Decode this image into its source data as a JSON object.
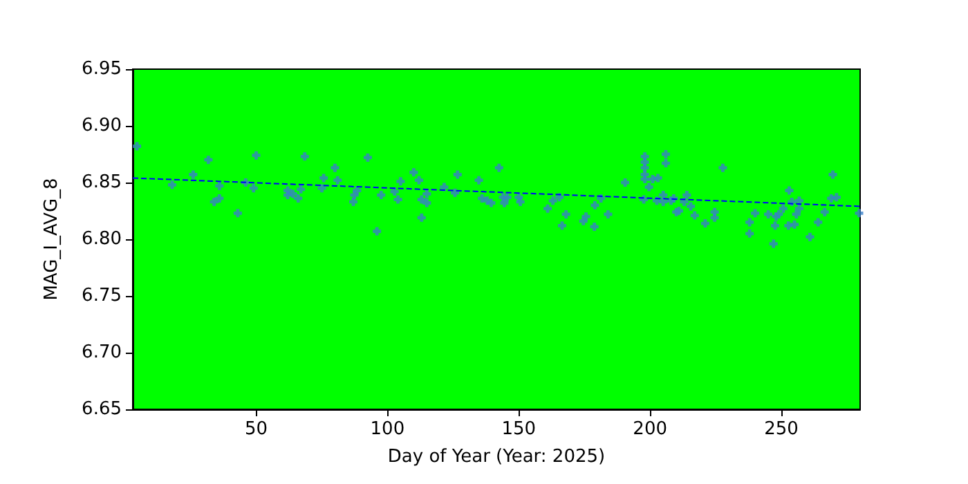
{
  "chart_data": {
    "type": "scatter",
    "xlabel": "Day of Year (Year: 2025)",
    "ylabel": "MAG_I_AVG_8",
    "xlim": [
      3,
      280
    ],
    "xticks": [
      50,
      100,
      150,
      200,
      250
    ],
    "ylim": [
      6.65,
      6.95
    ],
    "yticks": [
      6.65,
      {
        "value": 6.7,
        "label": "6.70"
      },
      6.75,
      {
        "value": 6.8,
        "label": "6.80"
      },
      6.85,
      {
        "value": 6.9,
        "label": "6.90"
      },
      6.95
    ],
    "grid": false,
    "series": [
      {
        "marker": "cross",
        "color": "#3a7fc8",
        "x": [
          4.6,
          18,
          26,
          31.8,
          34,
          36,
          36,
          43,
          46,
          49,
          50,
          62,
          62,
          64,
          66,
          67,
          68.5,
          75,
          75.7,
          80,
          81,
          87,
          87.4,
          88.4,
          92.5,
          96,
          97.6,
          102.7,
          104,
          105,
          110,
          112,
          113,
          113,
          115,
          115,
          121.6,
          125.7,
          126.7,
          134.8,
          136,
          138,
          139.5,
          142.5,
          144,
          144.5,
          145.6,
          150,
          150.6,
          161,
          163,
          165.5,
          166.5,
          168,
          174.6,
          175.6,
          178.8,
          179,
          181.3,
          184,
          190.5,
          197.6,
          198,
          198,
          198,
          198,
          198,
          199.6,
          201,
          203,
          202.6,
          205,
          205,
          206,
          206,
          208,
          209,
          210,
          211,
          213,
          214,
          215.5,
          217,
          221,
          224.6,
          224.6,
          227.7,
          237.9,
          237.9,
          240,
          245,
          247,
          247.6,
          248,
          249,
          250.7,
          252.7,
          253,
          254,
          255,
          255.7,
          256.8,
          256.8,
          260.9,
          264,
          266.5,
          269,
          269.6,
          271,
          279.6
        ],
        "values": [
          6.882,
          6.848,
          6.857,
          6.87,
          6.833,
          6.847,
          6.836,
          6.823,
          6.85,
          6.845,
          6.874,
          6.843,
          6.839,
          6.84,
          6.836,
          6.844,
          6.873,
          6.845,
          6.854,
          6.863,
          6.852,
          6.833,
          6.839,
          6.843,
          6.872,
          6.807,
          6.839,
          6.842,
          6.835,
          6.851,
          6.859,
          6.852,
          6.835,
          6.819,
          6.84,
          6.832,
          6.846,
          6.841,
          6.857,
          6.852,
          6.836,
          6.834,
          6.832,
          6.863,
          6.837,
          6.832,
          6.837,
          6.837,
          6.833,
          6.827,
          6.834,
          6.837,
          6.812,
          6.822,
          6.816,
          6.82,
          6.811,
          6.83,
          6.836,
          6.822,
          6.85,
          6.835,
          6.873,
          6.868,
          6.863,
          6.857,
          6.853,
          6.846,
          6.853,
          6.854,
          6.834,
          6.839,
          6.833,
          6.875,
          6.867,
          6.834,
          6.836,
          6.824,
          6.825,
          6.833,
          6.839,
          6.829,
          6.821,
          6.814,
          6.824,
          6.819,
          6.863,
          6.815,
          6.805,
          6.823,
          6.822,
          6.796,
          6.812,
          6.82,
          6.822,
          6.827,
          6.812,
          6.843,
          6.833,
          6.813,
          6.822,
          6.834,
          6.827,
          6.802,
          6.815,
          6.824,
          6.836,
          6.857,
          6.837,
          6.823
        ]
      },
      {
        "type": "line",
        "marker": "none",
        "color": "#0000ff",
        "line_style": "dashed",
        "x": [
          3,
          280
        ],
        "values": [
          6.854,
          6.829
        ]
      }
    ]
  }
}
